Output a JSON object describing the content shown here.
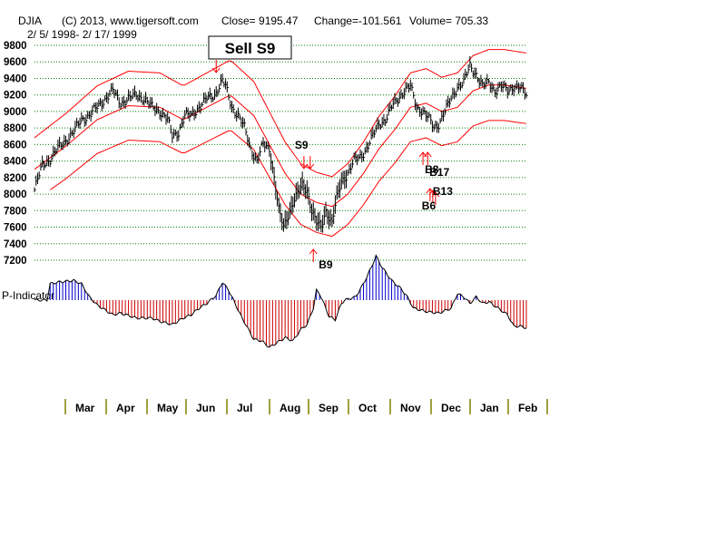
{
  "header": {
    "symbol": "DJIA",
    "copyright": "(C) 2013, www.tigersoft.com",
    "close": "Close=  9195.47",
    "change": "Change=-101.561",
    "volume": "Volume= 705.33",
    "date_range": "2/ 5/ 1998- 2/ 17/ 1999"
  },
  "signal_box": "Sell S9",
  "indicator_label": "P-Indicator",
  "colors": {
    "band": "#ff0000",
    "positive": "#0000cc",
    "negative": "#cc0000",
    "grid": "#008000",
    "month_tick": "#808000",
    "price_bar": "#000000"
  },
  "chart_data": {
    "type": "line",
    "title": "DJIA",
    "ylim": [
      7200,
      9800
    ],
    "yticks": [
      "9800",
      "9600",
      "9400",
      "9200",
      "9000",
      "8800",
      "8600",
      "8400",
      "8200",
      "8000",
      "7800",
      "7600",
      "7400",
      "7200"
    ],
    "months": [
      "Mar",
      "Apr",
      "May",
      "Jun",
      "Jul",
      "Aug",
      "Sep",
      "Oct",
      "Nov",
      "Dec",
      "Jan",
      "Feb"
    ],
    "price_anchors": [
      [
        0,
        8050
      ],
      [
        5,
        8350
      ],
      [
        10,
        8420
      ],
      [
        15,
        8550
      ],
      [
        20,
        8650
      ],
      [
        25,
        8750
      ],
      [
        30,
        8900
      ],
      [
        35,
        8950
      ],
      [
        40,
        9050
      ],
      [
        45,
        9150
      ],
      [
        50,
        9250
      ],
      [
        55,
        9100
      ],
      [
        60,
        9150
      ],
      [
        65,
        9200
      ],
      [
        70,
        9150
      ],
      [
        75,
        9050
      ],
      [
        80,
        9000
      ],
      [
        85,
        8900
      ],
      [
        88,
        8700
      ],
      [
        92,
        8750
      ],
      [
        96,
        8950
      ],
      [
        100,
        8950
      ],
      [
        105,
        9050
      ],
      [
        110,
        9150
      ],
      [
        115,
        9200
      ],
      [
        118,
        9300
      ],
      [
        120,
        9370
      ],
      [
        122,
        9300
      ],
      [
        126,
        9050
      ],
      [
        130,
        8950
      ],
      [
        134,
        8800
      ],
      [
        138,
        8550
      ],
      [
        142,
        8400
      ],
      [
        146,
        8600
      ],
      [
        150,
        8550
      ],
      [
        153,
        8200
      ],
      [
        156,
        7800
      ],
      [
        159,
        7600
      ],
      [
        162,
        7750
      ],
      [
        165,
        7900
      ],
      [
        168,
        8000
      ],
      [
        171,
        8100
      ],
      [
        174,
        8050
      ],
      [
        177,
        7800
      ],
      [
        180,
        7650
      ],
      [
        183,
        7600
      ],
      [
        186,
        7800
      ],
      [
        190,
        7650
      ],
      [
        193,
        7950
      ],
      [
        196,
        8150
      ],
      [
        200,
        8250
      ],
      [
        204,
        8400
      ],
      [
        208,
        8450
      ],
      [
        212,
        8550
      ],
      [
        216,
        8700
      ],
      [
        220,
        8850
      ],
      [
        224,
        8900
      ],
      [
        228,
        9050
      ],
      [
        232,
        9150
      ],
      [
        236,
        9250
      ],
      [
        240,
        9300
      ],
      [
        244,
        9050
      ],
      [
        248,
        9000
      ],
      [
        252,
        8900
      ],
      [
        255,
        8800
      ],
      [
        258,
        8850
      ],
      [
        262,
        9000
      ],
      [
        266,
        9150
      ],
      [
        270,
        9300
      ],
      [
        274,
        9350
      ],
      [
        278,
        9550
      ],
      [
        282,
        9450
      ],
      [
        286,
        9300
      ],
      [
        290,
        9350
      ],
      [
        294,
        9250
      ],
      [
        298,
        9300
      ],
      [
        302,
        9250
      ],
      [
        306,
        9300
      ],
      [
        310,
        9280
      ],
      [
        314,
        9200
      ]
    ],
    "mid_anchors": [
      [
        0,
        8300
      ],
      [
        20,
        8580
      ],
      [
        40,
        8900
      ],
      [
        60,
        9070
      ],
      [
        80,
        9050
      ],
      [
        95,
        8900
      ],
      [
        110,
        9050
      ],
      [
        125,
        9200
      ],
      [
        140,
        8950
      ],
      [
        150,
        8600
      ],
      [
        160,
        8250
      ],
      [
        170,
        8000
      ],
      [
        180,
        7900
      ],
      [
        190,
        7850
      ],
      [
        200,
        8000
      ],
      [
        210,
        8250
      ],
      [
        220,
        8550
      ],
      [
        230,
        8780
      ],
      [
        240,
        9050
      ],
      [
        250,
        9100
      ],
      [
        260,
        9000
      ],
      [
        270,
        9050
      ],
      [
        280,
        9250
      ],
      [
        290,
        9320
      ],
      [
        300,
        9320
      ],
      [
        314,
        9280
      ]
    ],
    "band_offset": 0.046,
    "sell_markers": [
      {
        "label": "Sell S9",
        "t": 116
      },
      {
        "label": "S9",
        "t": 172
      },
      {
        "label": "",
        "t": 176
      }
    ],
    "buy_markers": [
      {
        "label": "B9",
        "t": 178
      },
      {
        "label": "B8",
        "t": 248
      },
      {
        "label": "B17",
        "t": 251
      },
      {
        "label": "B13",
        "t": 256
      },
      {
        "label": "B6",
        "t": 249
      }
    ],
    "indicator_anchors": [
      [
        0,
        0
      ],
      [
        8,
        0
      ],
      [
        10,
        1
      ],
      [
        15,
        1.1
      ],
      [
        25,
        1.2
      ],
      [
        30,
        1
      ],
      [
        35,
        0.2
      ],
      [
        40,
        -0.3
      ],
      [
        50,
        -0.9
      ],
      [
        55,
        -0.8
      ],
      [
        65,
        -1.1
      ],
      [
        75,
        -1.1
      ],
      [
        80,
        -1.3
      ],
      [
        88,
        -1.5
      ],
      [
        95,
        -1.1
      ],
      [
        100,
        -0.9
      ],
      [
        105,
        -0.5
      ],
      [
        110,
        -0.2
      ],
      [
        116,
        0.3
      ],
      [
        120,
        1.1
      ],
      [
        124,
        0.6
      ],
      [
        128,
        -0.2
      ],
      [
        132,
        -1
      ],
      [
        140,
        -2.4
      ],
      [
        145,
        -2.5
      ],
      [
        150,
        -2.9
      ],
      [
        155,
        -2.6
      ],
      [
        160,
        -2.3
      ],
      [
        165,
        -2.5
      ],
      [
        170,
        -1.8
      ],
      [
        174,
        -1.5
      ],
      [
        178,
        -0.5
      ],
      [
        180,
        0.6
      ],
      [
        182,
        0.4
      ],
      [
        186,
        -0.5
      ],
      [
        188,
        -1
      ],
      [
        192,
        -1.2
      ],
      [
        196,
        -0.2
      ],
      [
        198,
        0
      ],
      [
        205,
        0.2
      ],
      [
        210,
        1
      ],
      [
        215,
        2
      ],
      [
        218,
        2.7
      ],
      [
        222,
        2
      ],
      [
        228,
        1.2
      ],
      [
        234,
        0.7
      ],
      [
        238,
        0.2
      ],
      [
        242,
        -0.5
      ],
      [
        250,
        -0.7
      ],
      [
        258,
        -0.8
      ],
      [
        266,
        -0.5
      ],
      [
        270,
        0.4
      ],
      [
        274,
        0.2
      ],
      [
        278,
        -0.2
      ],
      [
        282,
        0.2
      ],
      [
        286,
        -0.2
      ],
      [
        290,
        -0.1
      ],
      [
        296,
        -0.5
      ],
      [
        302,
        -0.9
      ],
      [
        306,
        -1.6
      ],
      [
        310,
        -1.6
      ],
      [
        314,
        -1.7
      ]
    ]
  }
}
